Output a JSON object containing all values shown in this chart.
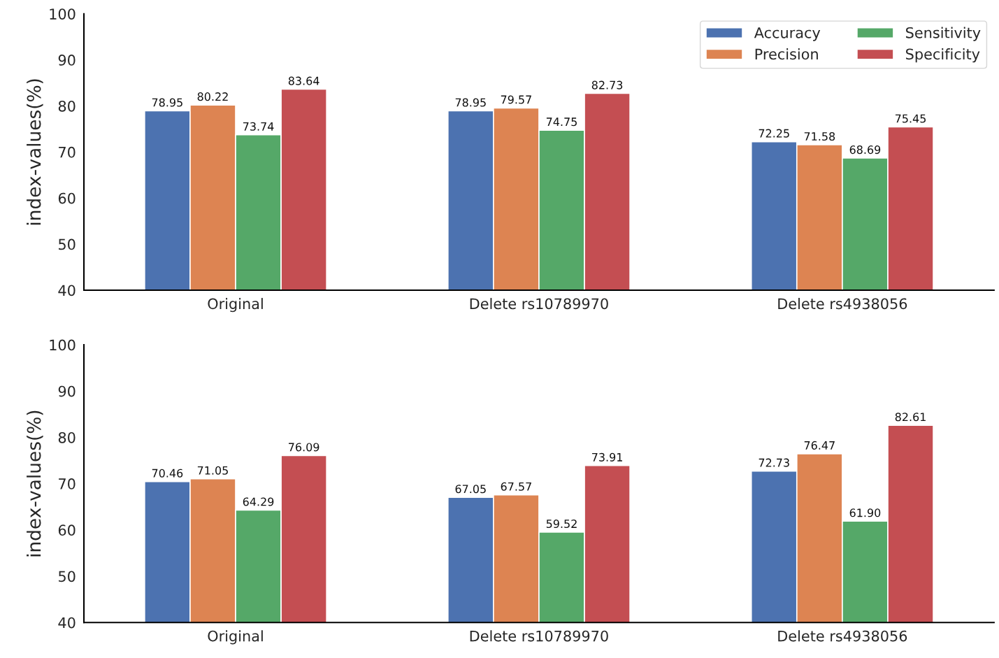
{
  "chart_data": [
    {
      "type": "bar",
      "ylabel": "index-values(%)",
      "categories": [
        "Original",
        "Delete rs10789970",
        "Delete rs4938056"
      ],
      "ylim": [
        40,
        100
      ],
      "yticks": [
        40,
        50,
        60,
        70,
        80,
        90,
        100
      ],
      "legend": "top right",
      "grid": false,
      "series": [
        {
          "name": "Accuracy",
          "color": "#4c72b0",
          "values": [
            78.95,
            78.95,
            72.25
          ],
          "value_labels": [
            "78.95",
            "78.95",
            "72.25"
          ]
        },
        {
          "name": "Precision",
          "color": "#dd8452",
          "values": [
            80.22,
            79.57,
            71.58
          ],
          "value_labels": [
            "80.22",
            "79.57",
            "71.58"
          ]
        },
        {
          "name": "Sensitivity",
          "color": "#55a868",
          "values": [
            73.74,
            74.75,
            68.69
          ],
          "value_labels": [
            "73.74",
            "74.75",
            "68.69"
          ]
        },
        {
          "name": "Specificity",
          "color": "#c44e52",
          "values": [
            83.64,
            82.73,
            75.45
          ],
          "value_labels": [
            "83.64",
            "82.73",
            "75.45"
          ]
        }
      ]
    },
    {
      "type": "bar",
      "ylabel": "index-values(%)",
      "categories": [
        "Original",
        "Delete rs10789970",
        "Delete rs4938056"
      ],
      "ylim": [
        40,
        100
      ],
      "yticks": [
        40,
        50,
        60,
        70,
        80,
        90,
        100
      ],
      "grid": false,
      "series": [
        {
          "color": "#4c72b0",
          "values": [
            70.46,
            67.05,
            72.73
          ],
          "value_labels": [
            "70.46",
            "67.05",
            "72.73"
          ]
        },
        {
          "color": "#dd8452",
          "values": [
            71.05,
            67.57,
            76.47
          ],
          "value_labels": [
            "71.05",
            "67.57",
            "76.47"
          ]
        },
        {
          "color": "#55a868",
          "values": [
            64.29,
            59.52,
            61.9
          ],
          "value_labels": [
            "64.29",
            "59.52",
            "61.90"
          ]
        },
        {
          "color": "#c44e52",
          "values": [
            76.09,
            73.91,
            82.61
          ],
          "value_labels": [
            "76.09",
            "73.91",
            "82.61"
          ]
        }
      ]
    }
  ]
}
